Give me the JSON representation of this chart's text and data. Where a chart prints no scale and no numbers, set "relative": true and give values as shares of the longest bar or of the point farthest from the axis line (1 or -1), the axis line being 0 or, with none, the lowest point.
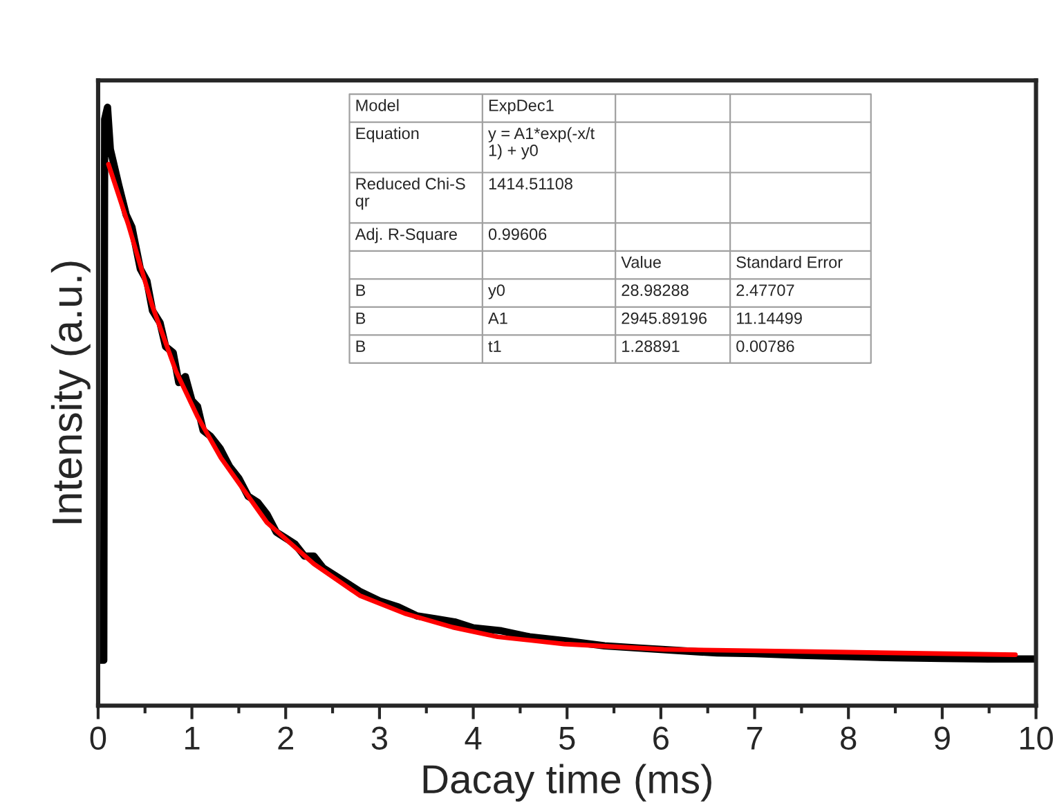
{
  "chart_data": {
    "type": "line",
    "relative": true,
    "xlabel": "Dacay time (ms)",
    "ylabel": "Intensity (a.u.)",
    "xlim": [
      0,
      10
    ],
    "xticks": [
      0,
      1,
      2,
      3,
      4,
      5,
      6,
      7,
      8,
      9,
      10
    ],
    "tick_labels": "x",
    "grid": false,
    "legend": false,
    "marker": "none",
    "line_style": "solid",
    "series": [
      {
        "color": "#000000",
        "x": [
          0,
          0.06,
          0.07,
          0.1,
          0.13,
          0.16,
          0.22,
          0.3,
          0.36,
          0.45,
          0.52,
          0.58,
          0.66,
          0.72,
          0.8,
          0.86,
          0.93,
          1.0,
          1.06,
          1.12,
          1.2,
          1.3,
          1.4,
          1.5,
          1.6,
          1.7,
          1.8,
          1.9,
          2.0,
          2.1,
          2.2,
          2.3,
          2.4,
          2.6,
          2.8,
          3.0,
          3.2,
          3.4,
          3.6,
          3.8,
          4.0,
          4.3,
          4.6,
          5.0,
          5.4,
          5.8,
          6.2,
          6.6,
          7.0,
          7.5,
          8.0,
          8.5,
          9.0,
          9.5,
          10.0
        ],
        "values": [
          0.076,
          0.076,
          0.98,
          1.0,
          0.93,
          0.91,
          0.87,
          0.82,
          0.8,
          0.73,
          0.71,
          0.66,
          0.64,
          0.6,
          0.59,
          0.54,
          0.55,
          0.51,
          0.5,
          0.46,
          0.45,
          0.43,
          0.4,
          0.38,
          0.35,
          0.34,
          0.32,
          0.29,
          0.28,
          0.27,
          0.25,
          0.25,
          0.23,
          0.21,
          0.19,
          0.175,
          0.165,
          0.15,
          0.145,
          0.14,
          0.13,
          0.125,
          0.115,
          0.108,
          0.1,
          0.096,
          0.092,
          0.088,
          0.087,
          0.084,
          0.082,
          0.08,
          0.079,
          0.078,
          0.078
        ]
      },
      {
        "color": "#ff0000",
        "x": [
          0.11,
          0.32,
          0.58,
          0.83,
          1.06,
          1.31,
          1.8,
          2.3,
          2.79,
          3.27,
          3.78,
          4.26,
          4.97,
          6.03,
          7.74,
          9.78
        ],
        "values": [
          0.905,
          0.805,
          0.667,
          0.559,
          0.483,
          0.414,
          0.306,
          0.237,
          0.184,
          0.154,
          0.131,
          0.115,
          0.103,
          0.094,
          0.09,
          0.085
        ]
      }
    ],
    "annotations": [
      "Model",
      "ExpDec1",
      "Equation",
      "y = A1*exp(-x/t\n1) + y0",
      "Reduced Chi-S\nqr",
      "1414.51108",
      "Adj. R-Square",
      "0.99606",
      "Value",
      "Standard Error",
      "B",
      "y0",
      "28.98288",
      "2.47707",
      "B",
      "A1",
      "2945.89196",
      "11.14499",
      "B",
      "t1",
      "1.28891",
      "0.00786"
    ]
  }
}
